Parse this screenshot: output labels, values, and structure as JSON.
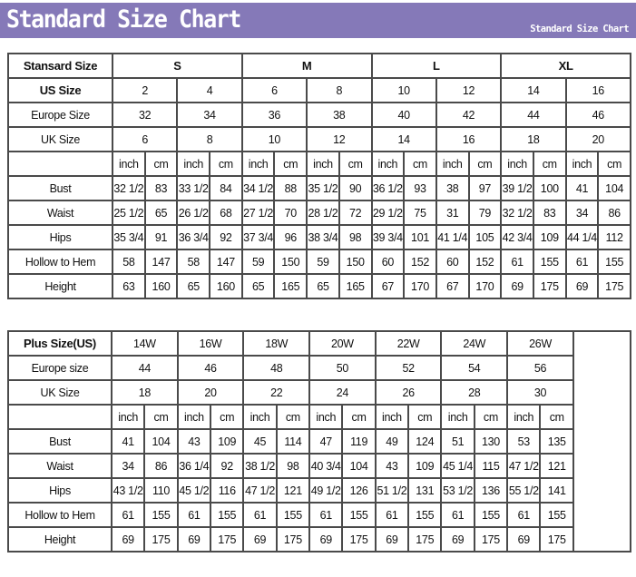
{
  "header": {
    "title": "Standard Size Chart",
    "subtitle": "Standard Size Chart",
    "color": "#8579b8"
  },
  "standard": {
    "label": "Stansard Size",
    "groups": [
      "S",
      "M",
      "L",
      "XL"
    ],
    "us_label": "US Size",
    "us": [
      "2",
      "4",
      "6",
      "8",
      "10",
      "12",
      "14",
      "16"
    ],
    "eu_label": "Europe Size",
    "eu": [
      "32",
      "34",
      "36",
      "38",
      "40",
      "42",
      "44",
      "46"
    ],
    "uk_label": "UK Size",
    "uk": [
      "6",
      "8",
      "10",
      "12",
      "14",
      "16",
      "18",
      "20"
    ],
    "units": [
      "inch",
      "cm"
    ],
    "rows": [
      {
        "label": "Bust",
        "values": [
          "32 1/2",
          "83",
          "33 1/2",
          "84",
          "34 1/2",
          "88",
          "35 1/2",
          "90",
          "36 1/2",
          "93",
          "38",
          "97",
          "39 1/2",
          "100",
          "41",
          "104"
        ]
      },
      {
        "label": "Waist",
        "values": [
          "25 1/2",
          "65",
          "26 1/2",
          "68",
          "27 1/2",
          "70",
          "28 1/2",
          "72",
          "29 1/2",
          "75",
          "31",
          "79",
          "32 1/2",
          "83",
          "34",
          "86"
        ]
      },
      {
        "label": "Hips",
        "values": [
          "35 3/4",
          "91",
          "36 3/4",
          "92",
          "37 3/4",
          "96",
          "38 3/4",
          "98",
          "39 3/4",
          "101",
          "41 1/4",
          "105",
          "42 3/4",
          "109",
          "44 1/4",
          "112"
        ]
      },
      {
        "label": "Hollow to Hem",
        "values": [
          "58",
          "147",
          "58",
          "147",
          "59",
          "150",
          "59",
          "150",
          "60",
          "152",
          "60",
          "152",
          "61",
          "155",
          "61",
          "155"
        ]
      },
      {
        "label": "Height",
        "values": [
          "63",
          "160",
          "65",
          "160",
          "65",
          "165",
          "65",
          "165",
          "67",
          "170",
          "67",
          "170",
          "69",
          "175",
          "69",
          "175"
        ]
      }
    ]
  },
  "plus": {
    "label": "Plus Size(US)",
    "us": [
      "14W",
      "16W",
      "18W",
      "20W",
      "22W",
      "24W",
      "26W"
    ],
    "eu_label": "Europe size",
    "eu": [
      "44",
      "46",
      "48",
      "50",
      "52",
      "54",
      "56"
    ],
    "uk_label": "UK Size",
    "uk": [
      "18",
      "20",
      "22",
      "24",
      "26",
      "28",
      "30"
    ],
    "units": [
      "inch",
      "cm"
    ],
    "rows": [
      {
        "label": "Bust",
        "values": [
          "41",
          "104",
          "43",
          "109",
          "45",
          "114",
          "47",
          "119",
          "49",
          "124",
          "51",
          "130",
          "53",
          "135"
        ]
      },
      {
        "label": "Waist",
        "values": [
          "34",
          "86",
          "36 1/4",
          "92",
          "38 1/2",
          "98",
          "40 3/4",
          "104",
          "43",
          "109",
          "45 1/4",
          "115",
          "47 1/2",
          "121"
        ]
      },
      {
        "label": "Hips",
        "values": [
          "43 1/2",
          "110",
          "45 1/2",
          "116",
          "47 1/2",
          "121",
          "49 1/2",
          "126",
          "51 1/2",
          "131",
          "53 1/2",
          "136",
          "55 1/2",
          "141"
        ]
      },
      {
        "label": "Hollow to Hem",
        "values": [
          "61",
          "155",
          "61",
          "155",
          "61",
          "155",
          "61",
          "155",
          "61",
          "155",
          "61",
          "155",
          "61",
          "155"
        ]
      },
      {
        "label": "Height",
        "values": [
          "69",
          "175",
          "69",
          "175",
          "69",
          "175",
          "69",
          "175",
          "69",
          "175",
          "69",
          "175",
          "69",
          "175"
        ]
      }
    ]
  }
}
